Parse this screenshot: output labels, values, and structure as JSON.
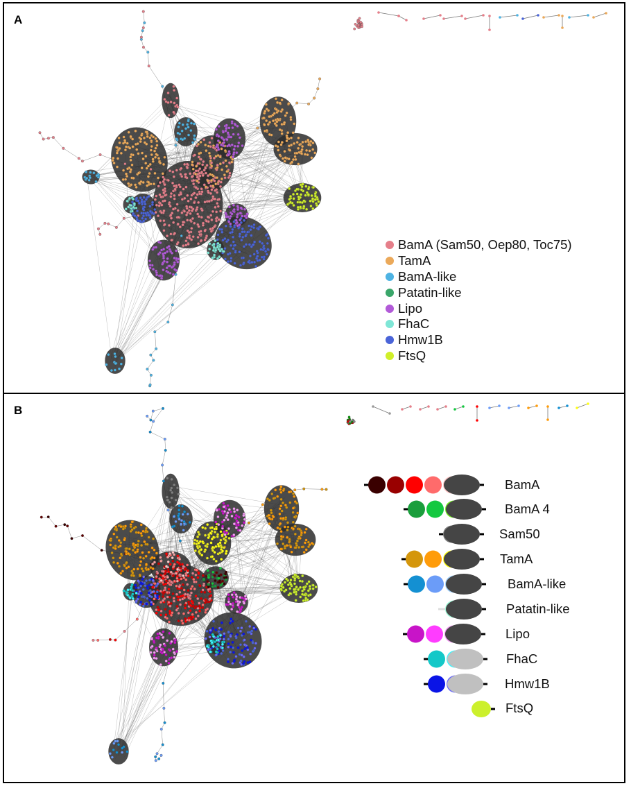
{
  "panels": {
    "a": {
      "letter": "A"
    },
    "b": {
      "letter": "B"
    }
  },
  "legend_a": [
    {
      "label": "BamA (Sam50, Oep80, Toc75)",
      "color": "#e57f8a"
    },
    {
      "label": "TamA",
      "color": "#eba95a"
    },
    {
      "label": "BamA-like",
      "color": "#4eb3e3"
    },
    {
      "label": "Patatin-like",
      "color": "#3aa66a"
    },
    {
      "label": "Lipo",
      "color": "#b25ad8"
    },
    {
      "label": "FhaC",
      "color": "#7fe6d6"
    },
    {
      "label": "Hmw1B",
      "color": "#4a64d8"
    },
    {
      "label": "FtsQ",
      "color": "#d0ef2a"
    }
  ],
  "legend_b": [
    {
      "label": "BamA",
      "polyc": [
        "#3a0000",
        "#990000",
        "#ff0000",
        "#ff6b6b",
        "#ffc8c8"
      ],
      "barrel": "#454545"
    },
    {
      "label": "BamA 4",
      "polyc": [
        "#1a9e3c",
        "#14c840",
        "#6fee1e"
      ],
      "barrel": "#454545"
    },
    {
      "label": "Sam50",
      "polyc": [
        "#808080"
      ],
      "barrel": "#454545"
    },
    {
      "label": "TamA",
      "polyc": [
        "#d4960c",
        "#ff9c0a",
        "#ffff14"
      ],
      "barrel": "#454545"
    },
    {
      "label": "BamA-like",
      "polyc": [
        "#1490d2",
        "#6b9cf8",
        "#9fd0fb"
      ],
      "barrel": "#454545"
    },
    {
      "label": "Patatin-like",
      "polyc": [
        "#9cf8d6"
      ],
      "barrel": "#454545"
    },
    {
      "label": "Lipo",
      "polyc": [
        "#c814c8",
        "#ff3cff",
        "#f59cf5"
      ],
      "barrel": "#454545"
    },
    {
      "label": "FhaC",
      "polyc": [
        "#14c8c8",
        "#3cf8ff"
      ],
      "barrel": "#c0c0c0"
    },
    {
      "label": "Hmw1B",
      "polyc": [
        "#0a14e6",
        "#6b6bf8"
      ],
      "barrel": "#c0c0c0"
    },
    {
      "label": "FtsQ",
      "polyc": [],
      "barrel": "#ccf02c"
    }
  ],
  "colors": {
    "edge": "#555555",
    "core_dark": "#2b2b2b"
  }
}
